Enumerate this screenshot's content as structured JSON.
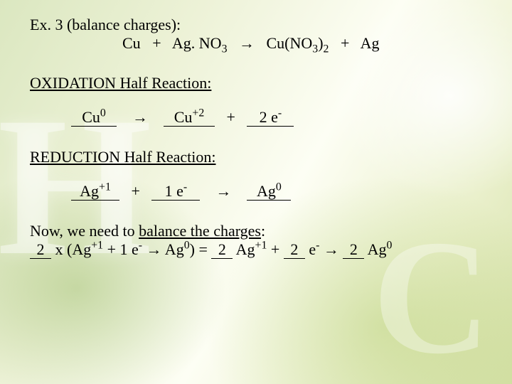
{
  "colors": {
    "text": "#000000"
  },
  "font": {
    "family": "Times New Roman",
    "size_pt": 17
  },
  "title": "Ex. 3 (balance charges):",
  "equation": {
    "lhs1": "Cu",
    "lhs2_a": "Ag. NO",
    "lhs2_sub": "3",
    "arrow": "→",
    "rhs1_a": "Cu(NO",
    "rhs1_sub": "3",
    "rhs1_b": ")",
    "rhs1_sub2": "2",
    "rhs2": "Ag"
  },
  "oxidation": {
    "heading": "OXIDATION Half Reaction:",
    "blank1": "Cu",
    "blank1_sup": "0",
    "arrow": "→",
    "blank2": "Cu",
    "blank2_sup": "+2",
    "plus": "+",
    "blank3": "2 e",
    "blank3_sup": "-"
  },
  "reduction": {
    "heading": "REDUCTION Half Reaction:",
    "blank1": "Ag",
    "blank1_sup": "+1",
    "plus": "+",
    "blank2": "1 e",
    "blank2_sup": "-",
    "arrow": "→",
    "blank3": "Ag",
    "blank3_sup": "0"
  },
  "balance": {
    "line1_a": "Now, we need to ",
    "line1_ul": "balance the charges",
    "line1_b": ":",
    "coef1": "2",
    "seg1a": " x (Ag",
    "seg1a_sup": "+1",
    "seg1b": "   +   1 e",
    "seg1b_sup": "-",
    "seg1c": "   →   Ag",
    "seg1c_sup": "0",
    "seg1d": ")   =   ",
    "coef2": "2",
    "seg2a": " Ag",
    "seg2a_sup": "+1",
    "seg2b": "   +   ",
    "coef3": "2",
    "seg3a": " e",
    "seg3a_sup": "-",
    "seg3b": "  →  ",
    "coef4": "2",
    "seg4a": " Ag",
    "seg4a_sup": "0"
  },
  "blank_widths": {
    "ox1": "64px",
    "ox2": "72px",
    "ox3": "66px",
    "re1": "68px",
    "re2": "68px",
    "re3": "62px",
    "sm": "30px"
  }
}
